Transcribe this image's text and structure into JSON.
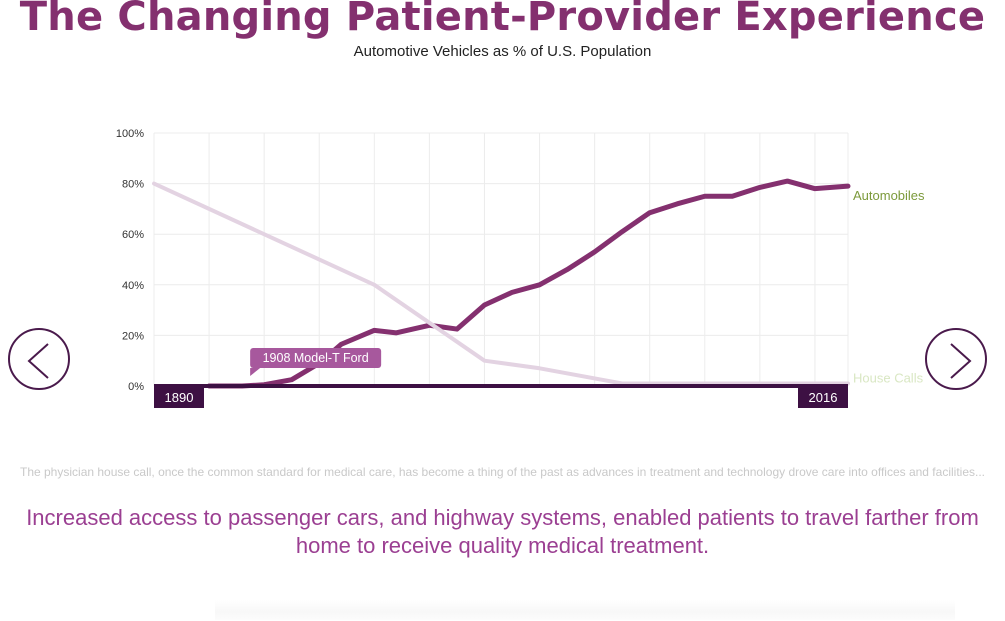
{
  "header": {
    "title": "The Changing Patient-Provider Experience",
    "subtitle": "Automotive Vehicles as % of U.S. Population"
  },
  "chart_data": {
    "type": "line",
    "x_start_label": "1890",
    "x_end_label": "2016",
    "xlim": [
      1890,
      2016
    ],
    "ylim": [
      0,
      100
    ],
    "y_ticks": [
      "0%",
      "20%",
      "40%",
      "60%",
      "80%",
      "100%"
    ],
    "grid": true,
    "series": [
      {
        "name": "Automobiles",
        "color": "#84306f",
        "label_color": "#7c9a3b",
        "x": [
          1900,
          1906,
          1910,
          1915,
          1920,
          1924,
          1930,
          1934,
          1940,
          1945,
          1950,
          1955,
          1960,
          1965,
          1970,
          1975,
          1980,
          1985,
          1990,
          1995,
          2000,
          2005,
          2010,
          2016
        ],
        "values": [
          0,
          0,
          0.5,
          2.5,
          9,
          16.5,
          22,
          21,
          24,
          22.5,
          32,
          37,
          40,
          46,
          53,
          61,
          68.5,
          72,
          75,
          75,
          78.5,
          81,
          78,
          79
        ]
      },
      {
        "name": "House Calls",
        "color": "#e3d3e2",
        "label_color": "#d9e7c3",
        "x": [
          1890,
          1930,
          1950,
          1960,
          1975,
          2016
        ],
        "values": [
          80,
          40,
          10,
          7,
          1,
          1
        ]
      }
    ],
    "annotations": [
      {
        "text": "1908 Model-T Ford",
        "x": 1908,
        "y": 0
      }
    ]
  },
  "navigation": {
    "prev_icon": "chevron-left-icon",
    "next_icon": "chevron-right-icon"
  },
  "body": {
    "intro": "The physician house call, once the common standard for medical care, has become a thing of the past as advances in treatment and technology drove care into offices and facilities...",
    "highlight": "Increased access to passenger cars, and highway systems, enabled patients to travel farther from home to receive quality medical treatment."
  },
  "colors": {
    "brand": "#84306f",
    "axis_bar": "#3d1043",
    "highlight_text": "#9b3f92",
    "annotation_bg": "#a7589d"
  }
}
